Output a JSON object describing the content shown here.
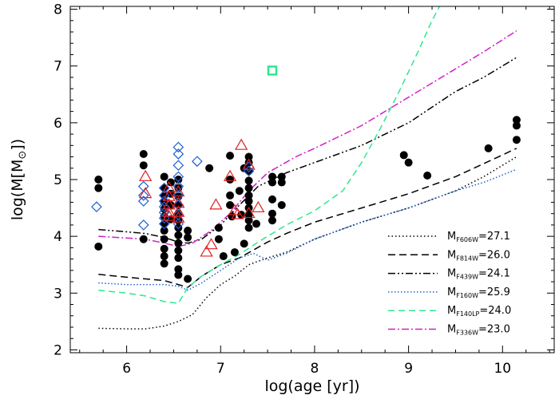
{
  "chart_data": {
    "type": "scatter",
    "xlabel_main": "log(age [yr])",
    "ylabel_prefix": "log(M[M",
    "ylabel_suffix": "])",
    "ylabel_symbol": "⊙",
    "xlim": [
      5.4,
      10.55
    ],
    "ylim": [
      1.95,
      8.05
    ],
    "xticks": [
      6,
      7,
      8,
      9,
      10
    ],
    "yticks": [
      2,
      3,
      4,
      5,
      6,
      7,
      8
    ],
    "tick_labels_x": [
      "6",
      "7",
      "8",
      "9",
      "10"
    ],
    "tick_labels_y": [
      "2",
      "3",
      "4",
      "5",
      "6",
      "7",
      "8"
    ],
    "legend_placement": "bottom-right",
    "series": [
      {
        "kind": "points",
        "marker": "circle",
        "color": "#000000",
        "points": [
          [
            5.7,
            5.0
          ],
          [
            5.7,
            4.85
          ],
          [
            5.7,
            3.82
          ],
          [
            6.18,
            5.45
          ],
          [
            6.18,
            5.25
          ],
          [
            6.18,
            3.95
          ],
          [
            6.4,
            5.05
          ],
          [
            6.4,
            4.85
          ],
          [
            6.4,
            4.72
          ],
          [
            6.4,
            4.6
          ],
          [
            6.4,
            4.48
          ],
          [
            6.4,
            4.35
          ],
          [
            6.4,
            4.22
          ],
          [
            6.4,
            4.1
          ],
          [
            6.4,
            3.95
          ],
          [
            6.4,
            3.78
          ],
          [
            6.4,
            3.65
          ],
          [
            6.4,
            3.52
          ],
          [
            6.47,
            4.95
          ],
          [
            6.47,
            4.75
          ],
          [
            6.47,
            4.55
          ],
          [
            6.47,
            4.3
          ],
          [
            6.55,
            5.0
          ],
          [
            6.55,
            4.85
          ],
          [
            6.55,
            4.7
          ],
          [
            6.55,
            4.55
          ],
          [
            6.55,
            4.4
          ],
          [
            6.55,
            4.28
          ],
          [
            6.55,
            4.15
          ],
          [
            6.55,
            4.02
          ],
          [
            6.55,
            3.88
          ],
          [
            6.55,
            3.75
          ],
          [
            6.55,
            3.62
          ],
          [
            6.55,
            3.42
          ],
          [
            6.55,
            3.32
          ],
          [
            6.65,
            4.1
          ],
          [
            6.65,
            3.98
          ],
          [
            6.65,
            3.25
          ],
          [
            6.88,
            5.2
          ],
          [
            6.98,
            4.15
          ],
          [
            6.98,
            3.95
          ],
          [
            7.03,
            3.65
          ],
          [
            7.1,
            5.42
          ],
          [
            7.1,
            5.0
          ],
          [
            7.1,
            4.72
          ],
          [
            7.1,
            4.55
          ],
          [
            7.12,
            4.35
          ],
          [
            7.15,
            3.72
          ],
          [
            7.2,
            4.8
          ],
          [
            7.22,
            4.38
          ],
          [
            7.25,
            5.2
          ],
          [
            7.25,
            3.87
          ],
          [
            7.3,
            5.4
          ],
          [
            7.3,
            5.3
          ],
          [
            7.3,
            5.15
          ],
          [
            7.3,
            4.98
          ],
          [
            7.3,
            4.85
          ],
          [
            7.3,
            4.72
          ],
          [
            7.3,
            4.62
          ],
          [
            7.3,
            4.5
          ],
          [
            7.3,
            4.38
          ],
          [
            7.3,
            4.28
          ],
          [
            7.3,
            4.15
          ],
          [
            7.38,
            4.22
          ],
          [
            7.55,
            5.05
          ],
          [
            7.55,
            4.95
          ],
          [
            7.55,
            4.65
          ],
          [
            7.55,
            4.4
          ],
          [
            7.55,
            4.28
          ],
          [
            7.65,
            5.05
          ],
          [
            7.65,
            4.95
          ],
          [
            7.65,
            4.55
          ],
          [
            8.95,
            5.43
          ],
          [
            9.0,
            5.3
          ],
          [
            9.2,
            5.07
          ],
          [
            9.85,
            5.55
          ],
          [
            10.15,
            6.05
          ],
          [
            10.15,
            5.95
          ],
          [
            10.15,
            5.7
          ]
        ]
      },
      {
        "kind": "points",
        "marker": "diamond",
        "color": "#1f5fd6",
        "points": [
          [
            5.68,
            4.52
          ],
          [
            6.18,
            4.88
          ],
          [
            6.18,
            4.72
          ],
          [
            6.18,
            4.62
          ],
          [
            6.18,
            4.2
          ],
          [
            6.4,
            4.85
          ],
          [
            6.4,
            4.72
          ],
          [
            6.4,
            4.62
          ],
          [
            6.4,
            4.52
          ],
          [
            6.4,
            4.42
          ],
          [
            6.4,
            4.32
          ],
          [
            6.4,
            4.22
          ],
          [
            6.55,
            5.57
          ],
          [
            6.55,
            5.45
          ],
          [
            6.55,
            5.25
          ],
          [
            6.55,
            5.05
          ],
          [
            6.55,
            4.88
          ],
          [
            6.55,
            4.72
          ],
          [
            6.55,
            4.55
          ],
          [
            6.55,
            4.38
          ],
          [
            6.55,
            4.22
          ],
          [
            6.75,
            5.32
          ],
          [
            7.3,
            5.22
          ],
          [
            7.3,
            5.15
          ]
        ]
      },
      {
        "kind": "points",
        "marker": "triangle",
        "color": "#e02020",
        "points": [
          [
            6.2,
            5.05
          ],
          [
            6.2,
            4.75
          ],
          [
            6.45,
            4.85
          ],
          [
            6.45,
            4.7
          ],
          [
            6.45,
            4.55
          ],
          [
            6.45,
            4.42
          ],
          [
            6.45,
            4.35
          ],
          [
            6.55,
            4.78
          ],
          [
            6.55,
            4.58
          ],
          [
            6.55,
            4.42
          ],
          [
            6.55,
            4.32
          ],
          [
            6.85,
            3.72
          ],
          [
            6.9,
            3.85
          ],
          [
            6.95,
            4.55
          ],
          [
            7.1,
            5.05
          ],
          [
            7.15,
            4.45
          ],
          [
            7.18,
            4.38
          ],
          [
            7.22,
            5.6
          ],
          [
            7.3,
            5.25
          ],
          [
            7.3,
            4.4
          ],
          [
            7.4,
            4.5
          ]
        ]
      },
      {
        "kind": "points",
        "marker": "square",
        "color": "#2ee88c",
        "points": [
          [
            7.55,
            6.92
          ]
        ]
      },
      {
        "kind": "line",
        "name": "606",
        "color": "#000000",
        "dash": "1.5,3",
        "points": [
          [
            5.7,
            2.38
          ],
          [
            6.0,
            2.37
          ],
          [
            6.2,
            2.37
          ],
          [
            6.4,
            2.42
          ],
          [
            6.55,
            2.5
          ],
          [
            6.7,
            2.62
          ],
          [
            6.85,
            2.92
          ],
          [
            7.0,
            3.15
          ],
          [
            7.15,
            3.3
          ],
          [
            7.3,
            3.5
          ],
          [
            7.5,
            3.62
          ],
          [
            7.7,
            3.72
          ],
          [
            8.0,
            3.95
          ],
          [
            8.5,
            4.25
          ],
          [
            9.0,
            4.5
          ],
          [
            9.5,
            4.8
          ],
          [
            9.8,
            5.05
          ],
          [
            10.15,
            5.4
          ]
        ]
      },
      {
        "kind": "line",
        "name": "814",
        "color": "#000000",
        "dash": "9,5",
        "points": [
          [
            5.7,
            3.33
          ],
          [
            6.0,
            3.28
          ],
          [
            6.2,
            3.25
          ],
          [
            6.4,
            3.22
          ],
          [
            6.55,
            3.15
          ],
          [
            6.65,
            3.1
          ],
          [
            6.8,
            3.3
          ],
          [
            7.0,
            3.5
          ],
          [
            7.2,
            3.62
          ],
          [
            7.5,
            3.9
          ],
          [
            7.7,
            4.05
          ],
          [
            8.0,
            4.25
          ],
          [
            8.5,
            4.5
          ],
          [
            9.0,
            4.75
          ],
          [
            9.5,
            5.05
          ],
          [
            9.8,
            5.28
          ],
          [
            10.15,
            5.55
          ]
        ]
      },
      {
        "kind": "line",
        "name": "439",
        "color": "#000000",
        "dash": "9,3,2,3,2,3",
        "points": [
          [
            5.7,
            4.12
          ],
          [
            6.0,
            4.08
          ],
          [
            6.2,
            4.05
          ],
          [
            6.4,
            3.98
          ],
          [
            6.55,
            3.9
          ],
          [
            6.65,
            3.88
          ],
          [
            6.8,
            3.95
          ],
          [
            7.0,
            4.2
          ],
          [
            7.2,
            4.55
          ],
          [
            7.4,
            4.88
          ],
          [
            7.7,
            5.12
          ],
          [
            8.0,
            5.3
          ],
          [
            8.5,
            5.6
          ],
          [
            9.0,
            6.0
          ],
          [
            9.5,
            6.55
          ],
          [
            9.8,
            6.8
          ],
          [
            10.15,
            7.15
          ]
        ]
      },
      {
        "kind": "line",
        "name": "160",
        "color": "#1f5fd6",
        "dash": "1.5,2.5",
        "points": [
          [
            5.7,
            3.18
          ],
          [
            6.0,
            3.15
          ],
          [
            6.2,
            3.15
          ],
          [
            6.4,
            3.15
          ],
          [
            6.55,
            3.12
          ],
          [
            6.65,
            3.05
          ],
          [
            6.8,
            3.18
          ],
          [
            7.0,
            3.4
          ],
          [
            7.2,
            3.62
          ],
          [
            7.35,
            3.7
          ],
          [
            7.5,
            3.58
          ],
          [
            7.7,
            3.7
          ],
          [
            8.0,
            3.95
          ],
          [
            8.5,
            4.25
          ],
          [
            9.0,
            4.5
          ],
          [
            9.5,
            4.8
          ],
          [
            9.8,
            4.95
          ],
          [
            10.15,
            5.18
          ]
        ]
      },
      {
        "kind": "line",
        "name": "140",
        "color": "#2ee88c",
        "dash": "8,5",
        "points": [
          [
            5.7,
            3.05
          ],
          [
            6.0,
            3.0
          ],
          [
            6.2,
            2.95
          ],
          [
            6.4,
            2.85
          ],
          [
            6.55,
            2.82
          ],
          [
            6.65,
            3.1
          ],
          [
            6.8,
            3.3
          ],
          [
            7.0,
            3.5
          ],
          [
            7.2,
            3.68
          ],
          [
            7.4,
            3.9
          ],
          [
            7.7,
            4.2
          ],
          [
            8.0,
            4.45
          ],
          [
            8.3,
            4.8
          ],
          [
            8.5,
            5.3
          ],
          [
            8.7,
            5.9
          ],
          [
            8.9,
            6.55
          ],
          [
            9.1,
            7.25
          ],
          [
            9.25,
            7.8
          ],
          [
            9.33,
            8.05
          ]
        ]
      },
      {
        "kind": "line",
        "name": "336",
        "color": "#d020c8",
        "dash": "9,3,2,3",
        "points": [
          [
            5.7,
            4.0
          ],
          [
            6.0,
            3.97
          ],
          [
            6.2,
            3.95
          ],
          [
            6.4,
            3.88
          ],
          [
            6.55,
            3.82
          ],
          [
            6.7,
            3.88
          ],
          [
            6.9,
            4.1
          ],
          [
            7.1,
            4.4
          ],
          [
            7.3,
            4.8
          ],
          [
            7.5,
            5.12
          ],
          [
            7.8,
            5.4
          ],
          [
            8.0,
            5.55
          ],
          [
            8.5,
            5.95
          ],
          [
            9.0,
            6.45
          ],
          [
            9.5,
            6.95
          ],
          [
            9.8,
            7.25
          ],
          [
            10.15,
            7.62
          ]
        ]
      }
    ],
    "legend": [
      {
        "series": 4,
        "main": "M",
        "sub": "F606W",
        "value": "=27.1"
      },
      {
        "series": 5,
        "main": "M",
        "sub": "F814W",
        "value": "=26.0"
      },
      {
        "series": 6,
        "main": "M",
        "sub": "F439W",
        "value": "=24.1"
      },
      {
        "series": 7,
        "main": "M",
        "sub": "F160W",
        "value": "=25.9"
      },
      {
        "series": 8,
        "main": "M",
        "sub": "F140LP",
        "value": "=24.0"
      },
      {
        "series": 9,
        "main": "M",
        "sub": "F336W",
        "value": "=23.0"
      }
    ]
  }
}
